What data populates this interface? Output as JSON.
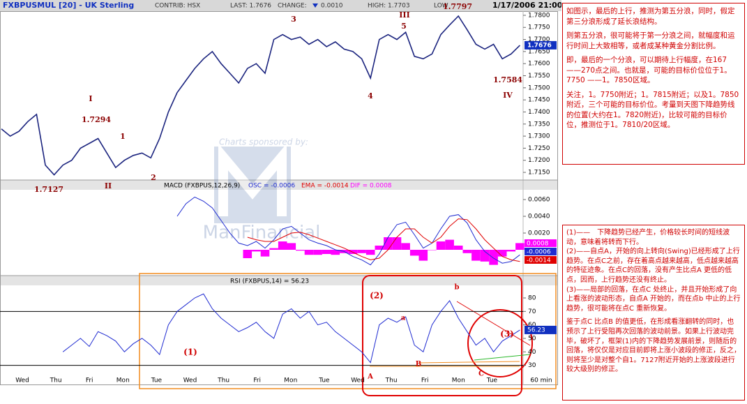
{
  "header": {
    "title": "FXBPUSMUL [20] - UK Sterling",
    "contrib": "CONTRIB: HSX",
    "last": "LAST: 1.7676",
    "change": "CHANGE:",
    "change_value": "0.0010",
    "high": "HIGH: 1.7703",
    "low": "LOW",
    "datetime": "1/17/2006 21:00"
  },
  "watermark": {
    "line1": "Charts sponsored by:",
    "line2": "ManFinancial"
  },
  "chart_data": [
    {
      "type": "line",
      "name": "price",
      "last_label": "1.7676",
      "ylim": [
        1.7127,
        1.782
      ],
      "yticks": [
        {
          "value": 1.715,
          "label": "1.7150"
        },
        {
          "value": 1.72,
          "label": "1.7200"
        },
        {
          "value": 1.725,
          "label": "1.7250"
        },
        {
          "value": 1.73,
          "label": "1.7300"
        },
        {
          "value": 1.735,
          "label": "1.7350"
        },
        {
          "value": 1.74,
          "label": "1.7400"
        },
        {
          "value": 1.745,
          "label": "1.7450"
        },
        {
          "value": 1.75,
          "label": "1.7500"
        },
        {
          "value": 1.755,
          "label": "1.7550"
        },
        {
          "value": 1.76,
          "label": "1.7600"
        },
        {
          "value": 1.765,
          "label": "1.7650"
        },
        {
          "value": 1.77,
          "label": "1.7700"
        },
        {
          "value": 1.775,
          "label": "1.7750"
        },
        {
          "value": 1.78,
          "label": "1.7800"
        }
      ],
      "series": [
        {
          "name": "price",
          "color": "#1a237e",
          "values": [
            1.733,
            1.73,
            1.732,
            1.736,
            1.739,
            1.718,
            1.714,
            1.718,
            1.72,
            1.725,
            1.727,
            1.729,
            1.723,
            1.717,
            1.72,
            1.722,
            1.723,
            1.721,
            1.729,
            1.74,
            1.748,
            1.753,
            1.758,
            1.762,
            1.765,
            1.76,
            1.756,
            1.752,
            1.758,
            1.76,
            1.756,
            1.77,
            1.772,
            1.77,
            1.771,
            1.768,
            1.77,
            1.767,
            1.769,
            1.766,
            1.765,
            1.762,
            1.754,
            1.77,
            1.772,
            1.77,
            1.773,
            1.763,
            1.762,
            1.764,
            1.772,
            1.776,
            1.7797,
            1.774,
            1.768,
            1.766,
            1.768,
            1.762,
            1.764,
            1.7676
          ]
        }
      ],
      "annotations": [
        "I",
        "1.7294",
        "1",
        "2",
        "II",
        "1.7127",
        "3",
        "III",
        "5",
        "4",
        "1.7797",
        "1.7584",
        "IV"
      ]
    },
    {
      "type": "line",
      "name": "macd",
      "title": "MACD (FXBPUS,12,26,9)",
      "osc": "OSC = -0.0006",
      "ema": "EMA = -0.0014",
      "dif": "DIF = 0.0008",
      "boxes": [
        "0.0008",
        "-0.0006",
        "-0.0014"
      ],
      "ylim": [
        -0.0029,
        0.0073
      ],
      "yticks": [
        {
          "value": 0.006,
          "label": "0.0060"
        },
        {
          "value": 0.004,
          "label": "0.0040"
        },
        {
          "value": 0.002,
          "label": "0.0020"
        }
      ],
      "series": [
        {
          "name": "DIF",
          "color": "#ff00ff",
          "kind": "bar",
          "values": [
            null,
            null,
            null,
            null,
            null,
            null,
            null,
            null,
            null,
            null,
            null,
            null,
            null,
            null,
            null,
            null,
            null,
            null,
            null,
            null,
            null,
            null,
            null,
            null,
            null,
            null,
            null,
            null,
            -0.001,
            -0.0002,
            -0.0008,
            0.0002,
            0.001,
            0.0008,
            -0.0001,
            -0.0006,
            -0.0006,
            -0.0005,
            -0.0006,
            -0.0004,
            -0.0005,
            -0.0004,
            -0.0006,
            0.0005,
            0.0015,
            0.0015,
            0.0008,
            -0.0007,
            -0.0013,
            0,
            0.001,
            0.0012,
            0.0005,
            -0.0004,
            -0.0013,
            -0.0014,
            -0.0018,
            -0.0008,
            -0.0002,
            0.0008
          ]
        },
        {
          "name": "OSC",
          "color": "#1f2bd1",
          "values": [
            null,
            null,
            null,
            null,
            null,
            null,
            null,
            null,
            null,
            null,
            null,
            null,
            null,
            null,
            null,
            null,
            null,
            null,
            null,
            null,
            0.004,
            0.0055,
            0.0063,
            0.0058,
            0.005,
            0.0035,
            0.002,
            0.0008,
            0.0005,
            0.001,
            0.0002,
            0.0012,
            0.0025,
            0.0028,
            0.002,
            0.0012,
            0.0008,
            0.0005,
            0,
            -0.0002,
            -0.0008,
            -0.0012,
            -0.0018,
            -0.0005,
            0.0015,
            0.003,
            0.0033,
            0.0018,
            0.0002,
            0.0008,
            0.0025,
            0.004,
            0.0042,
            0.0032,
            0.0012,
            -0.0002,
            -0.001,
            -0.0016,
            -0.0014,
            -0.0006
          ]
        },
        {
          "name": "EMA",
          "color": "#e00000",
          "values": [
            null,
            null,
            null,
            null,
            null,
            null,
            null,
            null,
            null,
            null,
            null,
            null,
            null,
            null,
            null,
            null,
            null,
            null,
            null,
            null,
            null,
            null,
            null,
            null,
            null,
            null,
            null,
            null,
            0.0015,
            0.0012,
            0.001,
            0.001,
            0.0015,
            0.002,
            0.0021,
            0.0018,
            0.0014,
            0.001,
            0.0006,
            0.0002,
            -0.0003,
            -0.0008,
            -0.0012,
            -0.001,
            0,
            0.0015,
            0.0025,
            0.0025,
            0.0015,
            0.0008,
            0.0015,
            0.0028,
            0.0037,
            0.0036,
            0.0025,
            0.0012,
            0.0002,
            -0.0008,
            -0.0012,
            -0.0014
          ]
        }
      ]
    },
    {
      "type": "line",
      "name": "rsi",
      "title": "RSI (FXBPUS,14) = 56.23",
      "box": "56.23",
      "ylim": [
        21.5,
        88.8
      ],
      "yticks": [
        80,
        70,
        60,
        50,
        40,
        30
      ],
      "ref_lines": [
        70,
        30
      ],
      "x_labels": [
        "Wed",
        "Thu",
        "Fri",
        "Mon",
        "Tue",
        "Wed",
        "Thu",
        "Fri",
        "Mon",
        "Tue",
        "Wed",
        "Thu",
        "Fri",
        "Mon",
        "Tue",
        "60 min"
      ],
      "series": [
        {
          "name": "RSI",
          "color": "#1f2bd1",
          "values": [
            null,
            null,
            null,
            null,
            null,
            null,
            null,
            40,
            45,
            50,
            44,
            55,
            52,
            48,
            40,
            46,
            50,
            45,
            38,
            60,
            70,
            75,
            80,
            83,
            72,
            65,
            60,
            55,
            58,
            62,
            55,
            50,
            68,
            72,
            65,
            70,
            60,
            62,
            55,
            50,
            45,
            40,
            32,
            60,
            65,
            62,
            66,
            45,
            40,
            60,
            70,
            78,
            65,
            55,
            45,
            50,
            40,
            48,
            52,
            56.23
          ]
        }
      ],
      "annotations": [
        "(1)",
        "(2)",
        "(3)",
        "A",
        "B",
        "C",
        "a",
        "b"
      ]
    }
  ],
  "notes": {
    "top": [
      "如图示，最后的上行，推测为第五分浪，同时，假定第三分浪形成了延长浪结构。",
      "则第五分浪，很可能将于第一分浪之间，就幅度和运行时间上大致相等，或者成某种黄金分割比例。",
      "即，最后的一个分浪，可以期待上行幅度，在167——270点之间。也就是，可能的目标价位位于1。7750 ——1。7850区域。",
      "关注，1。7750附近；1。7815附近；以及1。7850附近，三个可能的目标价位。考量到天图下降趋势线的位置(大约在1。7820附近)，比较可能的目标价位，推测位于1。7810/20区域。"
    ],
    "bottom": [
      "(1)——　下降趋势已经产生，价格较长时间的短线波动，意味着将转而下行。",
      "(2)——自点A，开始的向上转向(Swing)已经形成了上行趋势。在点C之前，存在着高点越来越高，低点越来越高的特征迹象。在点C的回落，没有产生比点A 更低的低点，因而，上行趋势还没有终止。",
      "(3)——局部的回落，在点C 处终止，并且开始形成了向上看涨的波动形态，自点A 开始的，而在点b 中止的上行趋势，很可能将在点C 重新恢复。",
      "鉴于点C 比点B 的值更低，在形成看涨翻转的同时，也预示了上行受阻再次回落的波动前景。如果上行波动完毕，破坏了，框架(1)内的下降趋势发展前景，则随后的回落，将仅仅是对应目前即将上涨小波段的修正，反之，则将至少是对整个自1。7127附近开始的上涨波段进行较大级别的修正。"
    ]
  }
}
